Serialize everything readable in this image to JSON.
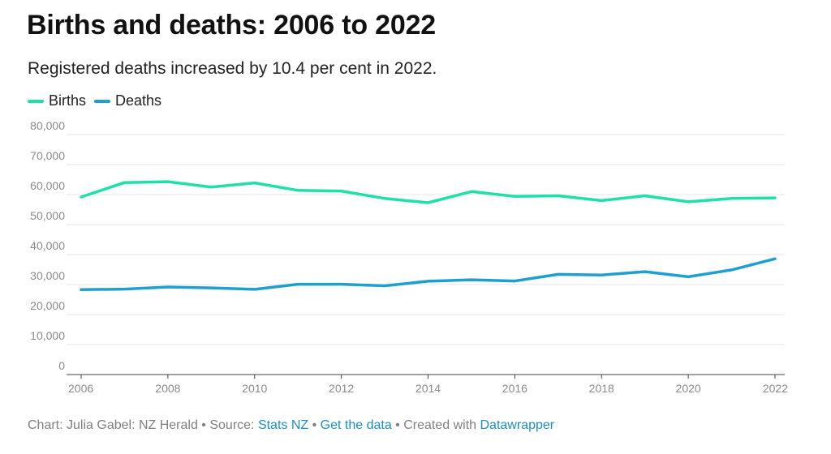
{
  "header": {
    "title": "Births and deaths: 2006 to 2022",
    "subtitle": "Registered deaths increased by 10.4 per cent in 2022."
  },
  "footer": {
    "prefix": "Chart: Julia Gabel: NZ Herald • Source: ",
    "source_link": "Stats NZ",
    "sep1": " • ",
    "data_link": "Get the data",
    "sep2": " • Created with ",
    "tool_link": "Datawrapper"
  },
  "chart_data": {
    "type": "line",
    "title": "Births and deaths: 2006 to 2022",
    "subtitle": "Registered deaths increased by 10.4 per cent in 2022.",
    "x": [
      2006,
      2007,
      2008,
      2009,
      2010,
      2011,
      2012,
      2013,
      2014,
      2015,
      2016,
      2017,
      2018,
      2019,
      2020,
      2021,
      2022
    ],
    "x_ticks": [
      "2006",
      "2008",
      "2010",
      "2012",
      "2014",
      "2016",
      "2018",
      "2020",
      "2022"
    ],
    "y_ticks": [
      "0",
      "10,000",
      "20,000",
      "30,000",
      "40,000",
      "50,000",
      "60,000",
      "70,000",
      "80,000"
    ],
    "ylim": [
      0,
      80000
    ],
    "grid": true,
    "legend_position": "top-left",
    "series": [
      {
        "name": "Births",
        "color": "#1fe0a9",
        "values": [
          59200,
          64000,
          64300,
          62500,
          63900,
          61400,
          61200,
          58700,
          57300,
          61000,
          59400,
          59600,
          58000,
          59600,
          57600,
          58700,
          58900
        ]
      },
      {
        "name": "Deaths",
        "color": "#1f9fcf",
        "values": [
          28300,
          28500,
          29200,
          28900,
          28400,
          30100,
          30100,
          29600,
          31100,
          31600,
          31200,
          33400,
          33200,
          34300,
          32600,
          34900,
          38600
        ]
      }
    ]
  }
}
